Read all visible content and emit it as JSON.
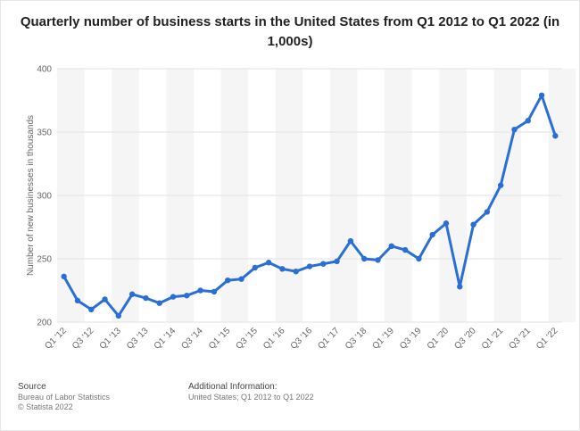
{
  "chart_data": {
    "type": "line",
    "title": "Quarterly number of business starts in the United States from Q1 2012 to Q1 2022 (in 1,000s)",
    "xlabel": "",
    "ylabel": "Number of new businesses in thousands",
    "ylim": [
      200,
      400
    ],
    "yticks": [
      200,
      250,
      300,
      350,
      400
    ],
    "grid": true,
    "color": "#2a6fd6",
    "x": [
      "Q1 '12",
      "Q2 '12",
      "Q3 '12",
      "Q4 '12",
      "Q1 '13",
      "Q2 '13",
      "Q3 '13",
      "Q4 '13",
      "Q1 '14",
      "Q2 '14",
      "Q3 '14",
      "Q4 '14",
      "Q1 '15",
      "Q2 '15",
      "Q3 '15",
      "Q4 '15",
      "Q1 '16",
      "Q2 '16",
      "Q3 '16",
      "Q4 '16",
      "Q1 '17",
      "Q2 '17",
      "Q3 '18",
      "Q4 '18",
      "Q1 '19",
      "Q2 '19",
      "Q3 '19",
      "Q4 '19",
      "Q1 '20",
      "Q2 '20",
      "Q3 '20",
      "Q4 '20",
      "Q1 '21",
      "Q2 '21",
      "Q3 '21",
      "Q4 '21",
      "Q1 '22"
    ],
    "xtick_labels": [
      "Q1 '12",
      "Q3 '12",
      "Q1 '13",
      "Q3 '13",
      "Q1 '14",
      "Q3 '14",
      "Q1 '15",
      "Q3 '15",
      "Q1 '16",
      "Q3 '16",
      "Q1 '17",
      "Q3 '18",
      "Q1 '19",
      "Q3 '19",
      "Q1 '20",
      "Q3 '20",
      "Q1 '21",
      "Q3 '21",
      "Q1 '22"
    ],
    "values": [
      236,
      217,
      210,
      218,
      205,
      222,
      219,
      215,
      220,
      221,
      225,
      224,
      233,
      234,
      243,
      247,
      242,
      240,
      244,
      246,
      248,
      264,
      250,
      249,
      260,
      257,
      250,
      269,
      278,
      228,
      277,
      287,
      308,
      352,
      359,
      379,
      347
    ]
  },
  "footer": {
    "source_heading": "Source",
    "source_lines": [
      "Bureau of Labor Statistics",
      "© Statista 2022"
    ],
    "info_heading": "Additional Information:",
    "info_line": "United States; Q1 2012 to Q1 2022"
  }
}
